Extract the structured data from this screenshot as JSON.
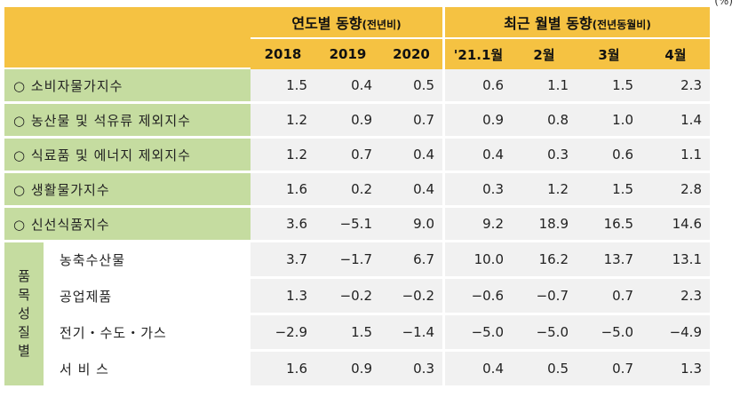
{
  "unit": "(%)",
  "header": {
    "group_yearly": "연도별 동향",
    "group_yearly_note": "(전년비)",
    "group_monthly": "최근 월별 동향",
    "group_monthly_note": "(전년동월비)",
    "columns": [
      "2018",
      "2019",
      "2020",
      "'21.1월",
      "2월",
      "3월",
      "4월"
    ]
  },
  "rows": [
    {
      "label": "○ 소비자물가지수",
      "values": [
        "1.5",
        "0.4",
        "0.5",
        "0.6",
        "1.1",
        "1.5",
        "2.3"
      ]
    },
    {
      "label": "○ 농산물 및 석유류 제외지수",
      "values": [
        "1.2",
        "0.9",
        "0.7",
        "0.9",
        "0.8",
        "1.0",
        "1.4"
      ]
    },
    {
      "label": "○ 식료품 및 에너지 제외지수",
      "values": [
        "1.2",
        "0.7",
        "0.4",
        "0.4",
        "0.3",
        "0.6",
        "1.1"
      ]
    },
    {
      "label": "○ 생활물가지수",
      "values": [
        "1.6",
        "0.2",
        "0.4",
        "0.3",
        "1.2",
        "1.5",
        "2.8"
      ]
    },
    {
      "label": "○ 신선식품지수",
      "values": [
        "3.6",
        "−5.1",
        "9.0",
        "9.2",
        "18.9",
        "16.5",
        "14.6"
      ]
    }
  ],
  "group": {
    "label_chars": [
      "품",
      "목",
      "성",
      "질",
      "별"
    ],
    "rows": [
      {
        "label": "농축수산물",
        "values": [
          "3.7",
          "−1.7",
          "6.7",
          "10.0",
          "16.2",
          "13.7",
          "13.1"
        ]
      },
      {
        "label": "공업제품",
        "values": [
          "1.3",
          "−0.2",
          "−0.2",
          "−0.6",
          "−0.7",
          "0.7",
          "2.3"
        ]
      },
      {
        "label": "전기・수도・가스",
        "values": [
          "−2.9",
          "1.5",
          "−1.4",
          "−5.0",
          "−5.0",
          "−5.0",
          "−4.9"
        ]
      },
      {
        "label": "서 비 스",
        "values": [
          "1.6",
          "0.9",
          "0.3",
          "0.4",
          "0.5",
          "0.7",
          "1.3"
        ]
      }
    ]
  },
  "colors": {
    "header": "#f5c242",
    "label_bg": "#c5dca0",
    "cell_bg": "#f1f1f1"
  }
}
